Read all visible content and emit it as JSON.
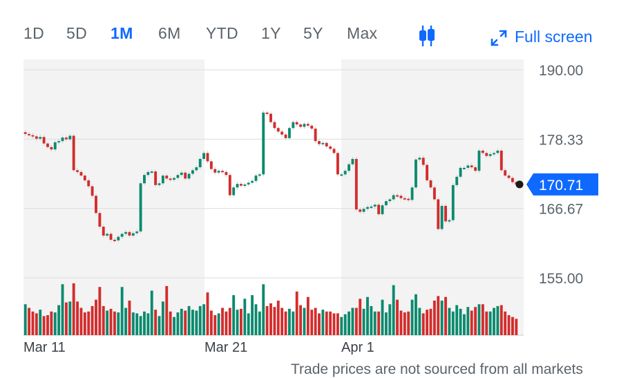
{
  "range_buttons": [
    "1D",
    "5D",
    "1M",
    "6M",
    "YTD",
    "1Y",
    "5Y",
    "Max"
  ],
  "active_range": "1M",
  "fullscreen_label": "Full screen",
  "icons": {
    "chart_type": "candlestick-icon",
    "fullscreen": "expand-arrows-icon"
  },
  "footnote": "Trade prices are not sourced from all markets",
  "colors": {
    "up": "#0b8a6e",
    "down": "#d32c2c",
    "accent": "#0f69ff",
    "grid": "#dcdcdc",
    "shade": "#f3f3f3",
    "text": "#5b636a"
  },
  "chart_data": {
    "type": "candlestick",
    "current_price": "170.71",
    "y_ticks": [
      "190.00",
      "178.33",
      "166.67",
      "155.00"
    ],
    "ylim": [
      155,
      190
    ],
    "x_ticks": [
      "Mar 11",
      "Mar 21",
      "Apr 1"
    ],
    "grid": true,
    "close": [
      179.2,
      179.0,
      178.8,
      178.4,
      178.7,
      177.6,
      177.0,
      176.6,
      177.8,
      178.0,
      178.6,
      178.3,
      178.9,
      173.1,
      172.8,
      172.2,
      171.4,
      170.4,
      168.8,
      165.9,
      163.6,
      162.1,
      162.4,
      161.4,
      161.3,
      161.9,
      162.4,
      162.7,
      162.1,
      162.5,
      162.8,
      170.9,
      172.3,
      172.8,
      172.9,
      170.6,
      170.9,
      172.2,
      171.7,
      171.5,
      171.8,
      172.3,
      172.7,
      171.7,
      172.5,
      173.1,
      173.6,
      175.0,
      176.0,
      174.6,
      173.3,
      172.7,
      173.0,
      172.8,
      172.3,
      168.9,
      170.2,
      170.8,
      170.5,
      170.7,
      171.0,
      171.3,
      172.2,
      172.4,
      182.8,
      182.6,
      181.2,
      180.2,
      179.6,
      179.1,
      178.5,
      180.2,
      181.2,
      180.8,
      180.4,
      180.9,
      180.6,
      180.1,
      178.0,
      177.5,
      177.7,
      177.1,
      176.7,
      176.0,
      172.4,
      172.4,
      173.0,
      174.1,
      175.0,
      166.5,
      166.1,
      166.6,
      166.9,
      167.0,
      167.3,
      165.7,
      167.2,
      167.9,
      168.2,
      168.9,
      168.8,
      168.4,
      168.3,
      168.1,
      170.2,
      174.9,
      175.2,
      174.0,
      171.4,
      170.2,
      168.2,
      163.2,
      167.1,
      164.5,
      164.7,
      170.6,
      172.0,
      173.5,
      173.5,
      173.9,
      173.6,
      173.0,
      176.4,
      176.0,
      175.5,
      175.8,
      176.0,
      176.4,
      173.1,
      172.2,
      171.8,
      171.1,
      170.71
    ],
    "volume": [
      3.4,
      3.0,
      2.6,
      2.4,
      2.8,
      2.1,
      2.2,
      2.6,
      2.5,
      3.3,
      5.6,
      3.6,
      3.7,
      5.7,
      3.7,
      3.0,
      2.5,
      2.6,
      3.2,
      3.9,
      5.3,
      3.2,
      2.7,
      2.9,
      2.6,
      2.5,
      5.3,
      3.0,
      3.8,
      2.5,
      2.4,
      2.1,
      2.6,
      2.4,
      4.9,
      2.8,
      2.1,
      3.7,
      5.4,
      2.6,
      2.0,
      2.5,
      2.9,
      2.7,
      3.2,
      2.8,
      2.7,
      3.2,
      3.4,
      4.7,
      2.7,
      2.2,
      2.4,
      3.0,
      2.6,
      3.0,
      4.4,
      2.8,
      2.9,
      4.0,
      2.4,
      4.4,
      3.4,
      2.6,
      5.6,
      3.2,
      3.5,
      3.1,
      3.8,
      3.0,
      2.6,
      2.9,
      2.6,
      4.8,
      3.3,
      3.0,
      4.2,
      2.8,
      3.0,
      2.4,
      2.8,
      2.6,
      2.6,
      2.4,
      2.4,
      2.0,
      2.3,
      2.6,
      3.0,
      3.0,
      4.0,
      2.9,
      4.2,
      3.2,
      2.6,
      2.6,
      3.9,
      2.5,
      3.4,
      5.5,
      3.9,
      2.7,
      2.5,
      2.6,
      3.9,
      4.5,
      3.0,
      2.4,
      2.8,
      2.9,
      3.8,
      4.3,
      3.8,
      4.2,
      3.0,
      2.6,
      3.3,
      2.9,
      2.3,
      3.1,
      2.7,
      3.1,
      3.4,
      3.4,
      2.6,
      2.6,
      3.0,
      3.2,
      3.3,
      2.6,
      2.2,
      2.0,
      1.8
    ]
  }
}
